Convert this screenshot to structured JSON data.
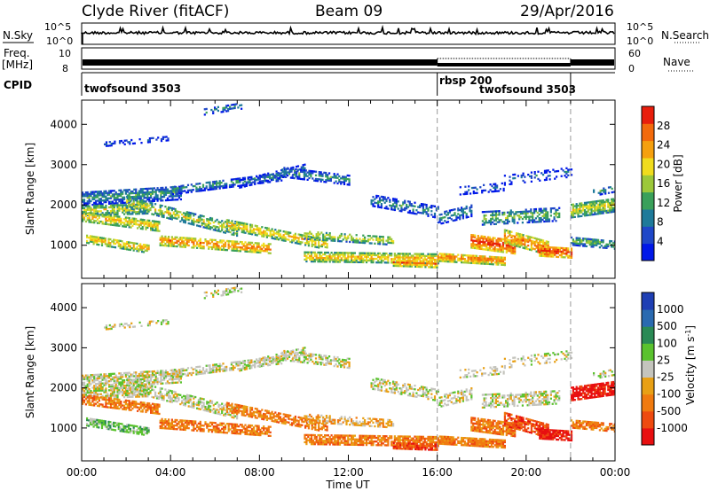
{
  "header": {
    "station": "Clyde River (fitACF)",
    "beam": "Beam 09",
    "date": "29/Apr/2016"
  },
  "top_panels": {
    "nsky_label": "N.Sky",
    "nsky_ticks": [
      "10^5",
      "10^0"
    ],
    "nsearch_label": "N.Search",
    "nsearch_ticks": [
      "10^5",
      "10^0"
    ],
    "freq_label": "Freq.",
    "freq_unit": "[MHz]",
    "freq_ticks": [
      "10",
      "8"
    ],
    "nave_label": "Nave",
    "nave_ticks": [
      "60",
      "0"
    ],
    "cpid_label": "CPID",
    "cpid_segments": [
      {
        "label": "twofsound 3503",
        "start_h": 0,
        "end_h": 16
      },
      {
        "label": "rbsp 200",
        "start_h": 16,
        "end_h": 22
      },
      {
        "label": "twofsound 3503",
        "start_h": 16,
        "end_h": 22
      }
    ]
  },
  "colors": {
    "power_scale": [
      "#0018e8",
      "#1f47c8",
      "#1e7a9a",
      "#3aa05a",
      "#9cc83a",
      "#f0dc1e",
      "#f5a00f",
      "#f36a0c",
      "#e81e0c"
    ],
    "velocity_scale": [
      "#1f3fb4",
      "#2a6ab0",
      "#2a8a55",
      "#5ac22e",
      "#c4c4bd",
      "#e8a015",
      "#f07a0f",
      "#ee4a10",
      "#e80f10"
    ]
  },
  "chart_data": [
    {
      "type": "heatmap",
      "title": "Power",
      "xlabel": "",
      "ylabel": "Slant Range [km]",
      "x_range_hours": [
        0,
        24
      ],
      "ylim": [
        180,
        4600
      ],
      "x_ticks": [],
      "y_ticks": [
        "1000",
        "2000",
        "3000",
        "4000"
      ],
      "colorbar": {
        "label": "Power [dB]",
        "ticks": [
          "4",
          "8",
          "12",
          "16",
          "20",
          "24",
          "28"
        ],
        "range": [
          0,
          32
        ]
      },
      "dashed_lines_h": [
        16,
        22
      ]
    },
    {
      "type": "heatmap",
      "title": "Velocity",
      "xlabel": "Time UT",
      "ylabel": "Slant Range [km]",
      "x_range_hours": [
        0,
        24
      ],
      "ylim": [
        180,
        4600
      ],
      "x_ticks": [
        "00:00",
        "04:00",
        "08:00",
        "12:00",
        "16:00",
        "20:00",
        "00:00"
      ],
      "y_ticks": [
        "1000",
        "2000",
        "3000",
        "4000"
      ],
      "colorbar": {
        "label": "Velocity [m s^-1]",
        "ticks": [
          "1000",
          "500",
          "100",
          "25",
          "-25",
          "-100",
          "-500",
          "-1000"
        ]
      },
      "dashed_lines_h": [
        16,
        22
      ]
    }
  ]
}
